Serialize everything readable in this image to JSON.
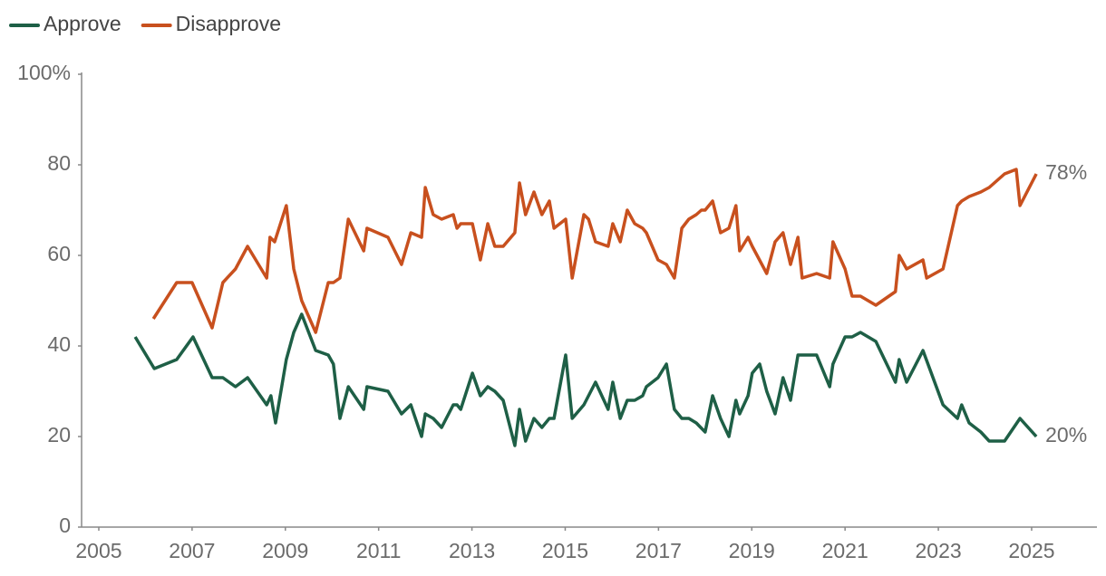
{
  "chart_data": {
    "type": "line",
    "legend": "top-left",
    "xlim": [
      2004.6,
      2026.4
    ],
    "xticks": [
      2005,
      2007,
      2009,
      2011,
      2013,
      2015,
      2017,
      2019,
      2021,
      2023,
      2025
    ],
    "ylim": [
      0,
      100
    ],
    "yticks": [
      0,
      20,
      40,
      60,
      80,
      {
        "value": 100,
        "label": "100%"
      }
    ],
    "grid": false,
    "series": [
      {
        "name": "Approve",
        "color": "#1e5f46",
        "end_label": "20%",
        "x": [
          2005.78,
          2006.19,
          2006.67,
          2007.02,
          2007.43,
          2007.66,
          2007.93,
          2008.19,
          2008.6,
          2008.69,
          2008.79,
          2009.02,
          2009.18,
          2009.35,
          2009.65,
          2009.92,
          2010.03,
          2010.17,
          2010.35,
          2010.68,
          2010.75,
          2011.2,
          2011.49,
          2011.69,
          2011.92,
          2012.0,
          2012.17,
          2012.35,
          2012.6,
          2012.68,
          2012.76,
          2013.01,
          2013.18,
          2013.34,
          2013.49,
          2013.67,
          2013.92,
          2014.02,
          2014.15,
          2014.33,
          2014.5,
          2014.66,
          2014.76,
          2015.01,
          2015.15,
          2015.4,
          2015.65,
          2015.92,
          2016.02,
          2016.18,
          2016.33,
          2016.49,
          2016.66,
          2016.74,
          2016.99,
          2017.17,
          2017.34,
          2017.5,
          2017.65,
          2017.81,
          2018.0,
          2018.16,
          2018.33,
          2018.51,
          2018.66,
          2018.74,
          2018.92,
          2019.01,
          2019.17,
          2019.32,
          2019.5,
          2019.67,
          2019.83,
          2019.99,
          2020.39,
          2020.67,
          2020.74,
          2021.0,
          2021.15,
          2021.33,
          2021.66,
          2022.08,
          2022.16,
          2022.32,
          2022.67,
          2023.1,
          2023.41,
          2023.5,
          2023.66,
          2023.91,
          2024.09,
          2024.42,
          2024.75,
          2025.1
        ],
        "values": [
          42,
          35,
          37,
          42,
          33,
          33,
          31,
          33,
          27,
          29,
          23,
          37,
          43,
          47,
          39,
          38,
          36,
          24,
          31,
          26,
          31,
          30,
          25,
          27,
          20,
          25,
          24,
          22,
          27,
          27,
          26,
          34,
          29,
          31,
          30,
          28,
          18,
          26,
          19,
          24,
          22,
          24,
          24,
          38,
          24,
          27,
          32,
          26,
          32,
          24,
          28,
          28,
          29,
          31,
          33,
          36,
          26,
          24,
          24,
          23,
          21,
          29,
          24,
          20,
          28,
          25,
          29,
          34,
          36,
          30,
          25,
          33,
          28,
          38,
          38,
          31,
          36,
          42,
          42,
          43,
          41,
          32,
          37,
          32,
          39,
          27,
          24,
          27,
          23,
          21,
          19,
          19,
          24,
          20
        ]
      },
      {
        "name": "Disapprove",
        "color": "#c8501e",
        "end_label": "78%",
        "x": [
          2006.17,
          2006.67,
          2007.0,
          2007.43,
          2007.66,
          2007.93,
          2008.19,
          2008.6,
          2008.67,
          2008.77,
          2009.02,
          2009.18,
          2009.35,
          2009.65,
          2009.92,
          2010.03,
          2010.17,
          2010.35,
          2010.68,
          2010.75,
          2011.2,
          2011.49,
          2011.69,
          2011.92,
          2012.0,
          2012.17,
          2012.35,
          2012.6,
          2012.68,
          2012.76,
          2013.01,
          2013.18,
          2013.34,
          2013.49,
          2013.67,
          2013.92,
          2014.02,
          2014.15,
          2014.33,
          2014.5,
          2014.66,
          2014.76,
          2015.01,
          2015.15,
          2015.4,
          2015.5,
          2015.65,
          2015.92,
          2016.02,
          2016.18,
          2016.33,
          2016.49,
          2016.66,
          2016.74,
          2016.99,
          2017.17,
          2017.34,
          2017.5,
          2017.65,
          2017.81,
          2017.92,
          2018.0,
          2018.16,
          2018.33,
          2018.51,
          2018.66,
          2018.74,
          2018.92,
          2019.01,
          2019.32,
          2019.5,
          2019.67,
          2019.83,
          2019.99,
          2020.08,
          2020.39,
          2020.67,
          2020.74,
          2021.0,
          2021.15,
          2021.33,
          2021.66,
          2022.08,
          2022.16,
          2022.32,
          2022.67,
          2022.75,
          2023.1,
          2023.41,
          2023.5,
          2023.66,
          2023.91,
          2024.09,
          2024.42,
          2024.67,
          2024.75,
          2025.1
        ],
        "values": [
          46,
          54,
          54,
          44,
          54,
          57,
          62,
          55,
          64,
          63,
          71,
          57,
          50,
          43,
          54,
          54,
          55,
          68,
          61,
          66,
          64,
          58,
          65,
          64,
          75,
          69,
          68,
          69,
          66,
          67,
          67,
          59,
          67,
          62,
          62,
          65,
          76,
          69,
          74,
          69,
          72,
          66,
          68,
          55,
          69,
          68,
          63,
          62,
          67,
          63,
          70,
          67,
          66,
          65,
          59,
          58,
          55,
          66,
          68,
          69,
          70,
          70,
          72,
          65,
          66,
          71,
          61,
          64,
          62,
          56,
          63,
          65,
          58,
          64,
          55,
          56,
          55,
          63,
          57,
          51,
          51,
          49,
          52,
          60,
          57,
          59,
          55,
          57,
          71,
          72,
          73,
          74,
          75,
          78,
          79,
          71,
          78
        ]
      }
    ]
  }
}
